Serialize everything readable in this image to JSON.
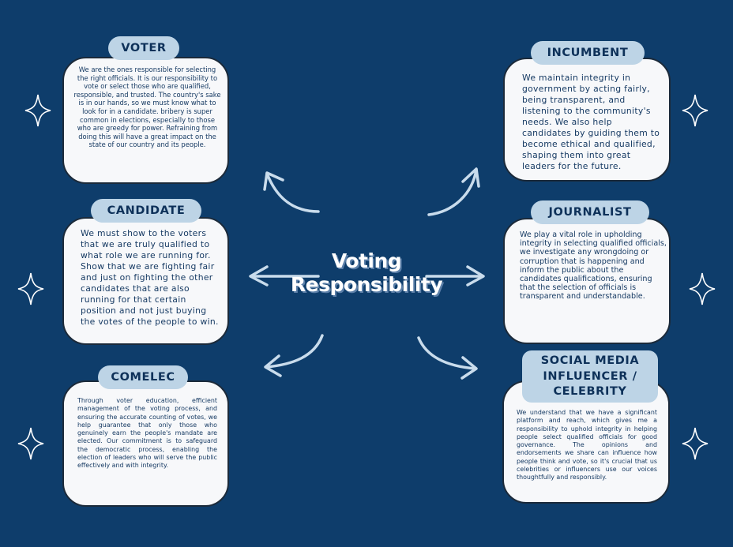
{
  "center": {
    "line1": "Voting",
    "line2": "Responsibility"
  },
  "roles": {
    "voter": {
      "title": "VOTER",
      "text": "We are the ones responsible for selecting the right officials. It is our responsibility to vote or select those who are qualified, responsible, and trusted. The country's sake is in our hands, so we must know what to look for in a candidate. bribery is super common in elections, especially to those who are greedy for power. Refraining from doing this will have a great impact on the state of our country and its people."
    },
    "candidate": {
      "title": "CANDIDATE",
      "text": "We must show to the voters that we are truly qualified to what role we are running for. Show that we are fighting fair and just on fighting the other candidates that are also running for that certain position and not just buying the votes of the people to win."
    },
    "comelec": {
      "title": "COMELEC",
      "text": "Through voter education, efficient management of the voting process, and ensuring the accurate counting of votes, we help guarantee that only those who genuinely earn the people's mandate are elected. Our commitment is to safeguard the democratic process, enabling the election of leaders who will serve the public effectively and with integrity."
    },
    "incumbent": {
      "title": "INCUMBENT",
      "text": "We maintain integrity in government by acting fairly, being transparent, and listening to the community's needs. We also help candidates by guiding them to become ethical and qualified, shaping them into great leaders for the future."
    },
    "journalist": {
      "title": "JOURNALIST",
      "text": "We play a vital role in upholding integrity in selecting qualified officials, we investigate any wrongdoing or corruption that is happening and inform the public about the candidates qualifications, ensuring that the selection of officials is transparent and understandable."
    },
    "influencer": {
      "title_line1": "SOCIAL MEDIA",
      "title_line2": "INFLUENCER /",
      "title_line3": "CELEBRITY",
      "text": "We understand that we have a significant platform and reach, which gives me a responsibility to uphold integrity in helping people select qualified officials for good governance. The opinions and endorsements we share can influence how people think and vote, so it's crucial that us celebrities or influencers use our voices thoughtfully and responsibly."
    }
  },
  "colors": {
    "background": "#0e3d6b",
    "card": "#f7f8fa",
    "pill": "#bdd4e6",
    "text": "#163a63",
    "arrow": "#c9dcec"
  }
}
